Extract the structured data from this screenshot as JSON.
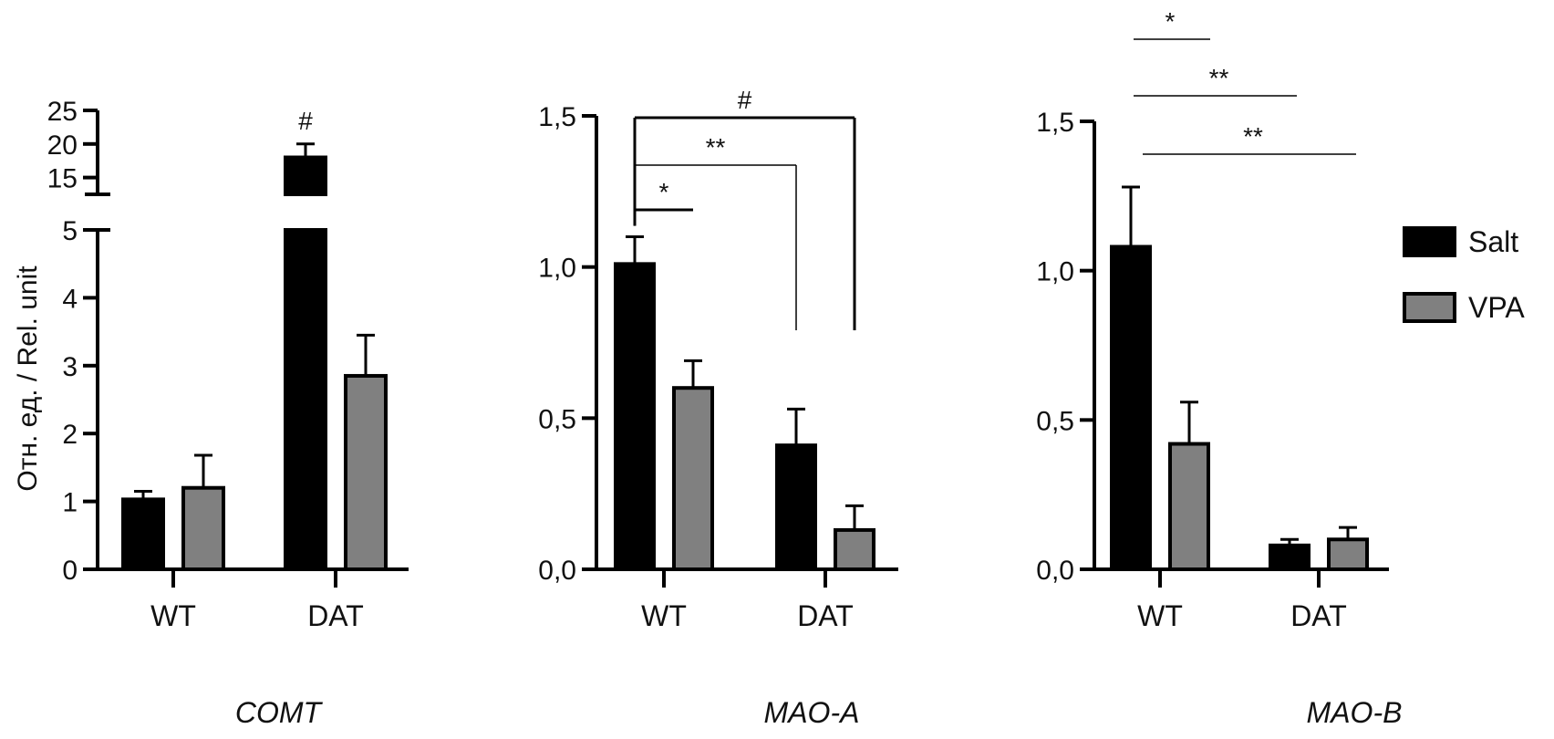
{
  "colors": {
    "salt": "#000000",
    "vpa": "#808080",
    "axis": "#000000"
  },
  "ylabel": "Отн. ед. / Rel. unit",
  "legend": {
    "items": [
      "Salt",
      "VPA"
    ]
  },
  "chart_data": [
    {
      "type": "bar",
      "title": "COMT",
      "categories": [
        "WT",
        "DAT"
      ],
      "ylabel": "Отн. ед. / Rel. unit",
      "broken_axis": true,
      "ylim_lower": [
        0,
        5
      ],
      "ylim_upper": [
        12.5,
        25
      ],
      "yticks_lower": [
        "0",
        "1",
        "2",
        "3",
        "4",
        "5"
      ],
      "yticks_upper": [
        "15",
        "20",
        "25"
      ],
      "series": [
        {
          "name": "Salt",
          "values": [
            1.03,
            18.0
          ],
          "errors": [
            0.12,
            2.0
          ]
        },
        {
          "name": "VPA",
          "values": [
            1.2,
            2.85
          ],
          "errors": [
            0.48,
            0.6
          ]
        }
      ],
      "annotations": [
        {
          "label": "#",
          "target": "DAT Salt"
        }
      ]
    },
    {
      "type": "bar",
      "title": "MAO-A",
      "categories": [
        "WT",
        "DAT"
      ],
      "ylim": [
        0,
        1.5
      ],
      "yticks": [
        "0,0",
        "0,5",
        "1,0",
        "1,5"
      ],
      "series": [
        {
          "name": "Salt",
          "values": [
            1.01,
            0.41
          ],
          "errors": [
            0.09,
            0.12
          ]
        },
        {
          "name": "VPA",
          "values": [
            0.6,
            0.13
          ],
          "errors": [
            0.09,
            0.08
          ]
        }
      ],
      "significance": [
        {
          "label": "*",
          "from": "WT Salt",
          "to": "WT VPA"
        },
        {
          "label": "**",
          "from": "WT Salt",
          "to": "DAT Salt"
        },
        {
          "label": "#",
          "from": "WT Salt",
          "to": "DAT VPA"
        }
      ]
    },
    {
      "type": "bar",
      "title": "MAO-B",
      "categories": [
        "WT",
        "DAT"
      ],
      "ylim": [
        0,
        1.5
      ],
      "yticks": [
        "0,0",
        "0,5",
        "1,0",
        "1,5"
      ],
      "series": [
        {
          "name": "Salt",
          "values": [
            1.08,
            0.08
          ],
          "errors": [
            0.2,
            0.02
          ]
        },
        {
          "name": "VPA",
          "values": [
            0.42,
            0.1
          ],
          "errors": [
            0.14,
            0.04
          ]
        }
      ],
      "significance": [
        {
          "label": "*",
          "from": "WT Salt",
          "to": "WT VPA"
        },
        {
          "label": "**",
          "from": "WT Salt",
          "to": "DAT Salt"
        },
        {
          "label": "**",
          "from": "WT Salt",
          "to": "DAT VPA"
        }
      ]
    }
  ]
}
